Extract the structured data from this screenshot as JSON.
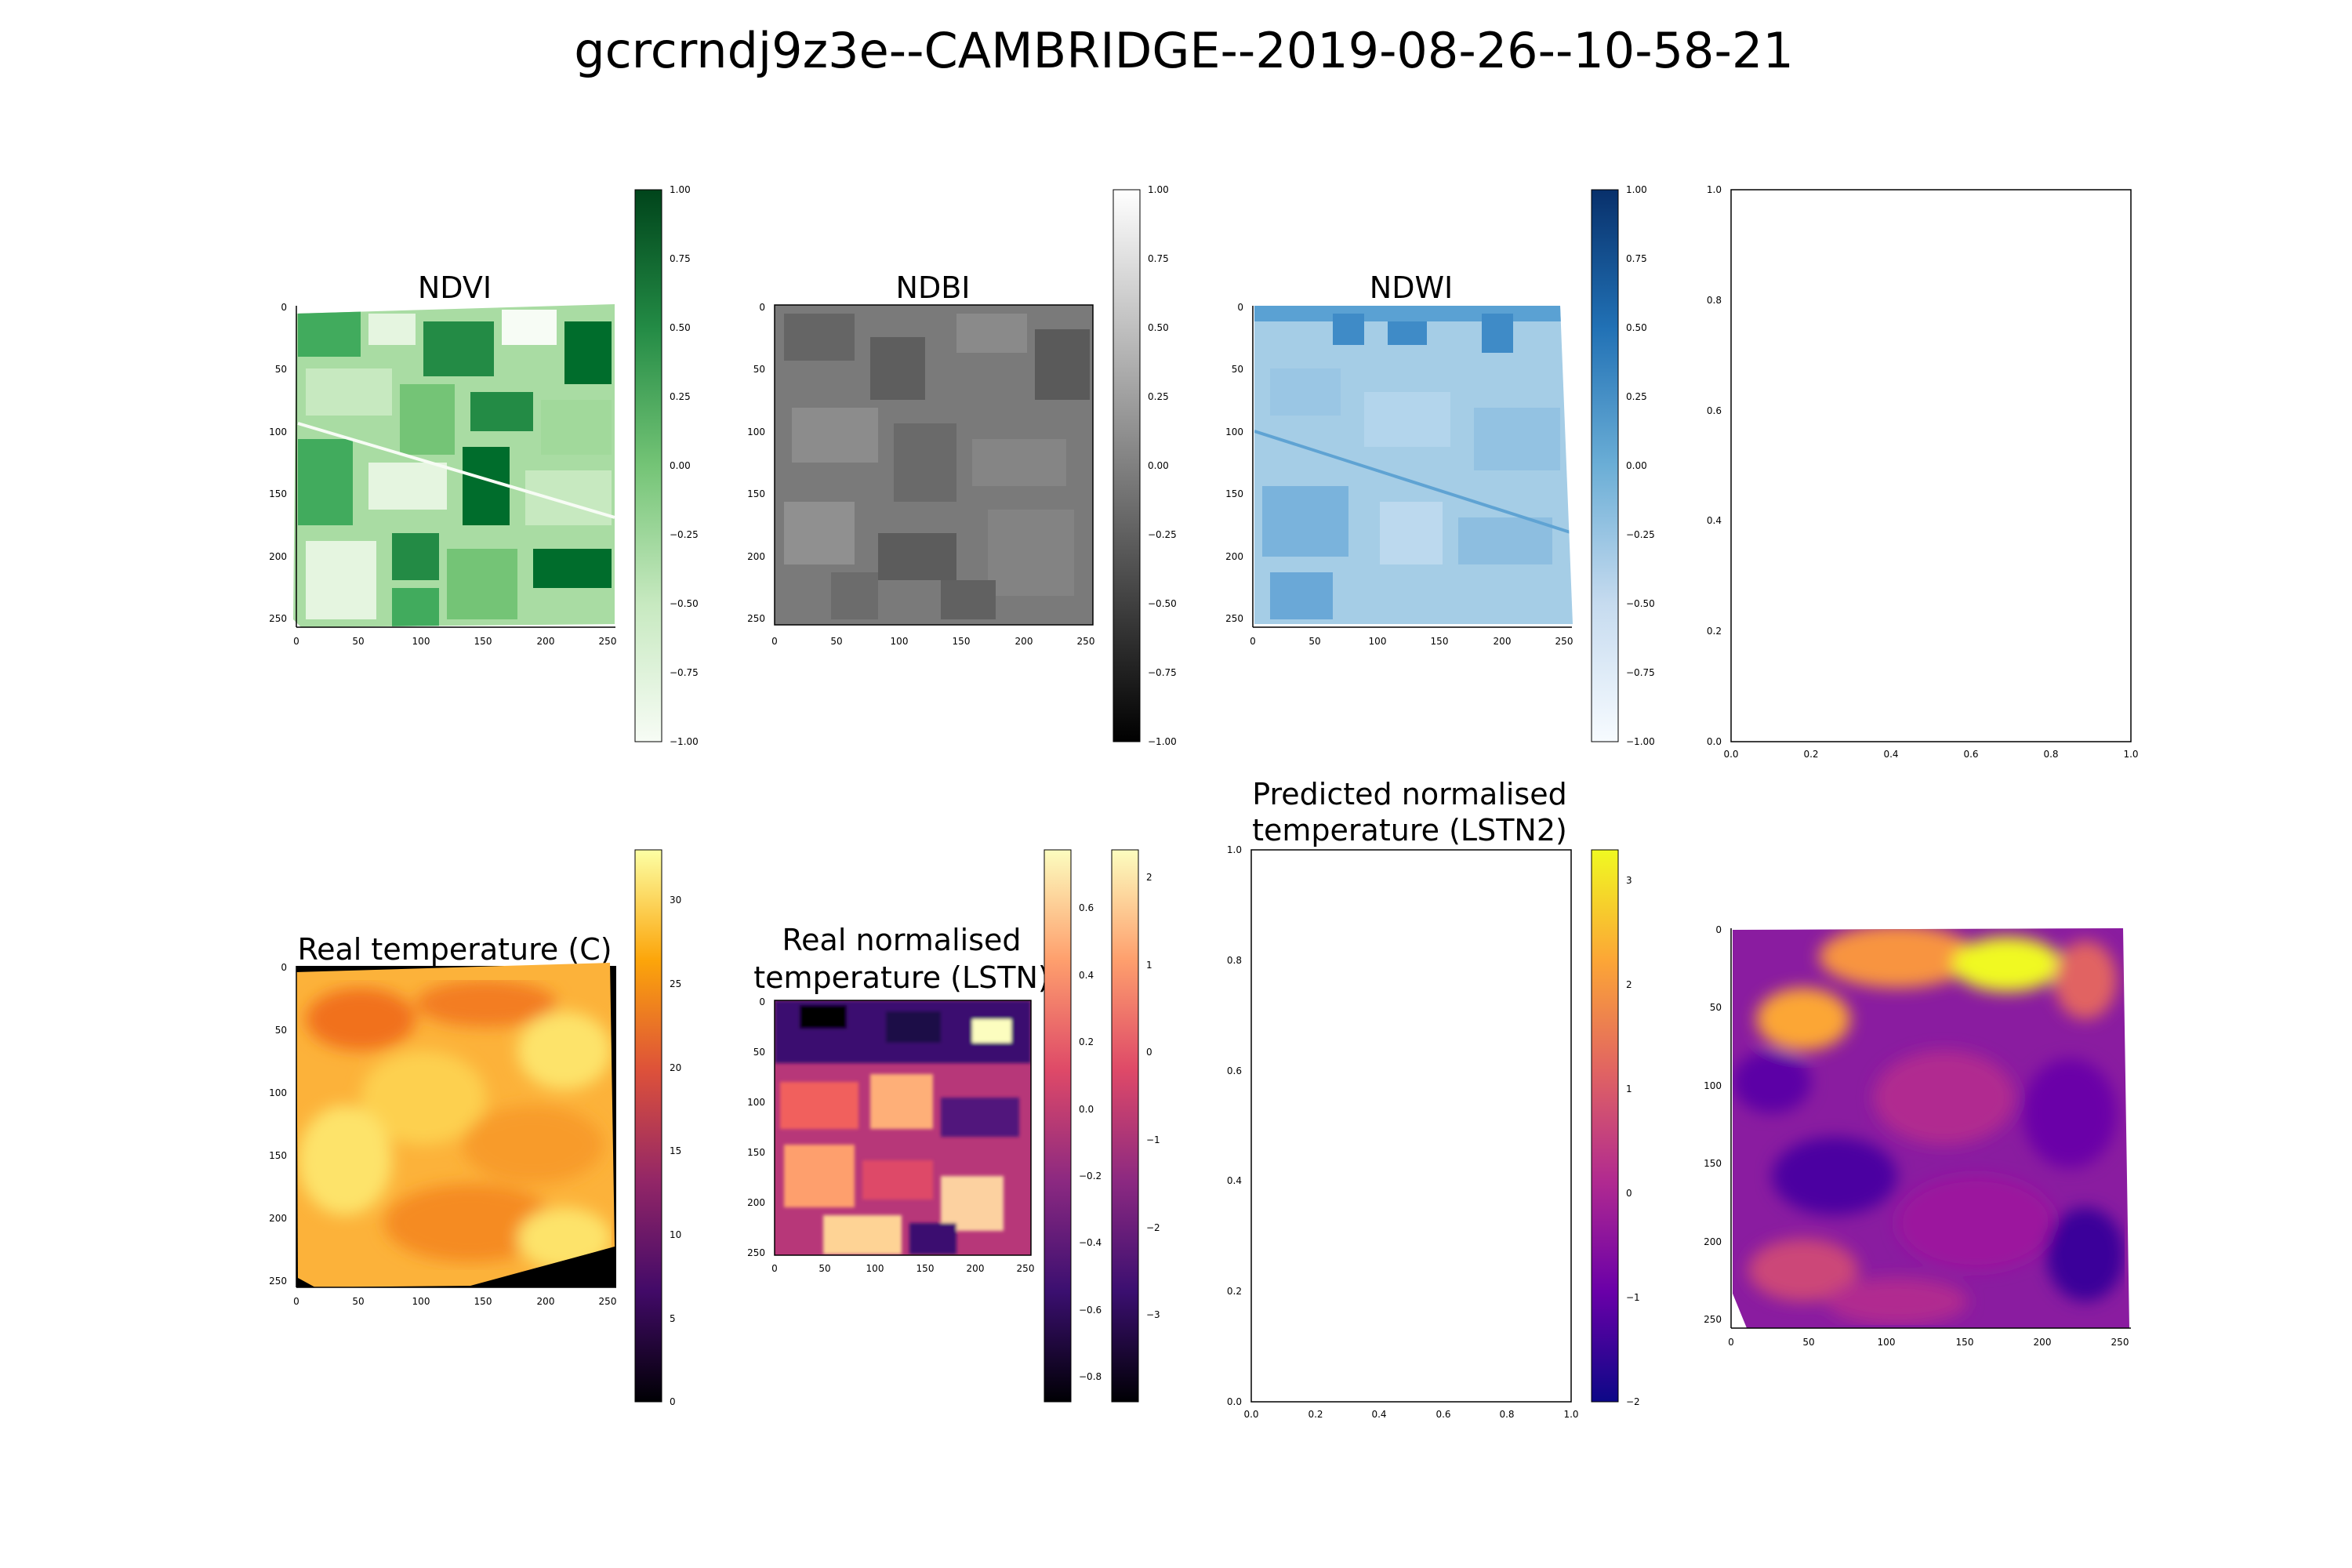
{
  "figure": {
    "title": "gcrcrndj9z3e--CAMBRIDGE--2019-08-26--10-58-21"
  },
  "chart_data": [
    {
      "id": "ndvi",
      "type": "heatmap",
      "title": "NDVI",
      "colormap": "greens",
      "colors": [
        "#f7fcf5",
        "#c7e9c0",
        "#74c476",
        "#238b45",
        "#00441b"
      ],
      "xlim": [
        0,
        255
      ],
      "ylim": [
        255,
        0
      ],
      "x_ticks": [
        "0",
        "50",
        "100",
        "150",
        "200",
        "250"
      ],
      "y_ticks": [
        "0",
        "50",
        "100",
        "150",
        "200",
        "250"
      ],
      "colorbar": {
        "range": [
          -1.0,
          1.0
        ],
        "ticks": [
          "−1.00",
          "−0.75",
          "−0.50",
          "−0.25",
          "0.00",
          "0.25",
          "0.50",
          "0.75",
          "1.00"
        ]
      }
    },
    {
      "id": "ndbi",
      "type": "heatmap",
      "title": "NDBI",
      "colormap": "greys",
      "colors": [
        "#000000",
        "#4d4d4d",
        "#808080",
        "#bdbdbd",
        "#ffffff"
      ],
      "xlim": [
        0,
        255
      ],
      "ylim": [
        255,
        0
      ],
      "x_ticks": [
        "0",
        "50",
        "100",
        "150",
        "200",
        "250"
      ],
      "y_ticks": [
        "0",
        "50",
        "100",
        "150",
        "200",
        "250"
      ],
      "colorbar": {
        "range": [
          -1.0,
          1.0
        ],
        "ticks": [
          "−1.00",
          "−0.75",
          "−0.50",
          "−0.25",
          "0.00",
          "0.25",
          "0.50",
          "0.75",
          "1.00"
        ]
      }
    },
    {
      "id": "ndwi",
      "type": "heatmap",
      "title": "NDWI",
      "colormap": "blues",
      "colors": [
        "#f7fbff",
        "#c6dbef",
        "#6baed6",
        "#2171b5",
        "#08306b"
      ],
      "xlim": [
        0,
        255
      ],
      "ylim": [
        255,
        0
      ],
      "x_ticks": [
        "0",
        "50",
        "100",
        "150",
        "200",
        "250"
      ],
      "y_ticks": [
        "0",
        "50",
        "100",
        "150",
        "200",
        "250"
      ],
      "colorbar": {
        "range": [
          -1.0,
          1.0
        ],
        "ticks": [
          "−1.00",
          "−0.75",
          "−0.50",
          "−0.25",
          "0.00",
          "0.25",
          "0.50",
          "0.75",
          "1.00"
        ]
      }
    },
    {
      "id": "empty-top",
      "type": "scatter",
      "x_ticks": [
        "0.0",
        "0.2",
        "0.4",
        "0.6",
        "0.8",
        "1.0"
      ],
      "y_ticks": [
        "0.0",
        "0.2",
        "0.4",
        "0.6",
        "0.8",
        "1.0"
      ],
      "xlim": [
        0,
        1
      ],
      "ylim": [
        0,
        1
      ]
    },
    {
      "id": "real-temp",
      "type": "heatmap",
      "title": "Real temperature (C)",
      "colormap": "inferno",
      "colors": [
        "#000004",
        "#420a68",
        "#932667",
        "#dd513a",
        "#fca50a",
        "#fcffa4"
      ],
      "xlim": [
        0,
        255
      ],
      "ylim": [
        255,
        0
      ],
      "x_ticks": [
        "0",
        "50",
        "100",
        "150",
        "200",
        "250"
      ],
      "y_ticks": [
        "0",
        "50",
        "100",
        "150",
        "200",
        "250"
      ],
      "colorbar": {
        "range": [
          0,
          33
        ],
        "ticks": [
          "0",
          "5",
          "10",
          "15",
          "20",
          "25",
          "30"
        ]
      }
    },
    {
      "id": "real-norm-temp",
      "type": "heatmap",
      "title_lines": [
        "Real normalised",
        "temperature (LSTN)"
      ],
      "colormap": "magma",
      "colors": [
        "#000004",
        "#3b0f70",
        "#8c2981",
        "#de4968",
        "#fe9f6d",
        "#fcfdbf"
      ],
      "xlim": [
        0,
        255
      ],
      "ylim": [
        255,
        0
      ],
      "x_ticks": [
        "0",
        "50",
        "100",
        "150",
        "200",
        "250"
      ],
      "y_ticks": [
        "0",
        "50",
        "100",
        "150",
        "200",
        "250"
      ],
      "colorbar": {
        "range": [
          -0.9,
          0.75
        ],
        "ticks": [
          "−0.8",
          "−0.6",
          "−0.4",
          "−0.2",
          "0.0",
          "0.2",
          "0.4",
          "0.6"
        ]
      },
      "colorbar2": {
        "range": [
          -4,
          2.3
        ],
        "ticks": [
          "−3",
          "−2",
          "−1",
          "0",
          "1",
          "2"
        ]
      }
    },
    {
      "id": "pred-norm-temp",
      "type": "heatmap",
      "title_lines": [
        "Predicted normalised",
        "temperature (LSTN2)"
      ],
      "colormap": "plasma",
      "colors": [
        "#0d0887",
        "#6a00a8",
        "#b12a90",
        "#e16462",
        "#fca636",
        "#f0f921"
      ],
      "x_ticks": [
        "0.0",
        "0.2",
        "0.4",
        "0.6",
        "0.8",
        "1.0"
      ],
      "y_ticks": [
        "0.0",
        "0.2",
        "0.4",
        "0.6",
        "0.8",
        "1.0"
      ],
      "xlim": [
        0,
        1
      ],
      "ylim": [
        0,
        1
      ],
      "colorbar": {
        "range": [
          -2,
          3.3
        ],
        "ticks": [
          "−2",
          "−1",
          "0",
          "1",
          "2",
          "3"
        ]
      }
    },
    {
      "id": "pred-map",
      "type": "heatmap",
      "colormap": "plasma",
      "colors": [
        "#0d0887",
        "#6a00a8",
        "#b12a90",
        "#e16462",
        "#fca636",
        "#f0f921"
      ],
      "xlim": [
        0,
        255
      ],
      "ylim": [
        255,
        0
      ],
      "x_ticks": [
        "0",
        "50",
        "100",
        "150",
        "200",
        "250"
      ],
      "y_ticks": [
        "0",
        "50",
        "100",
        "150",
        "200",
        "250"
      ]
    }
  ]
}
